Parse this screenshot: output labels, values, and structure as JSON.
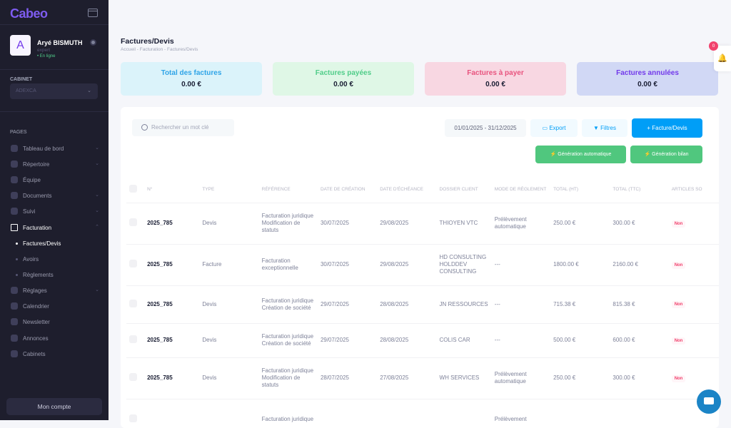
{
  "sidebar": {
    "logo": "Cabeo",
    "user": {
      "initial": "A",
      "name": "Aryé BISMUTH",
      "role": "expert",
      "status": "• En ligne"
    },
    "cabinet_label": "CABINET",
    "cabinet_value": "ADEXCA",
    "pages_label": "PAGES",
    "items": [
      {
        "label": "Tableau de bord"
      },
      {
        "label": "Répertoire"
      },
      {
        "label": "Équipe"
      },
      {
        "label": "Documents"
      },
      {
        "label": "Suivi"
      },
      {
        "label": "Facturation"
      },
      {
        "label": "Factures/Devis"
      },
      {
        "label": "Avoirs"
      },
      {
        "label": "Règlements"
      },
      {
        "label": "Réglages"
      },
      {
        "label": "Calendrier"
      },
      {
        "label": "Newsletter"
      },
      {
        "label": "Annonces"
      },
      {
        "label": "Cabinets"
      }
    ],
    "account_button": "Mon compte"
  },
  "header": {
    "title": "Factures/Devis",
    "breadcrumb": "Accueil  -  Facturation  -  Factures/Devis"
  },
  "cards": [
    {
      "title": "Total des factures",
      "value": "0.00 €",
      "color": "#2fa4e7",
      "bg": "#dbf3fa"
    },
    {
      "title": "Factures payées",
      "value": "0.00 €",
      "color": "#50cd89",
      "bg": "#dff7e6"
    },
    {
      "title": "Factures à payer",
      "value": "0.00 €",
      "color": "#e8537e",
      "bg": "#f8d7e2"
    },
    {
      "title": "Factures annulées",
      "value": "0.00 €",
      "color": "#7239ea",
      "bg": "#d1d8f5"
    }
  ],
  "toolbar": {
    "search_placeholder": "Rechercher un mot clé",
    "date_range": "01/01/2025 - 31/12/2025",
    "export": "Export",
    "filters": "Filtres",
    "new": "Facture/Devis",
    "gen_auto": "Génération automatique",
    "gen_bilan": "Génération bilan"
  },
  "table": {
    "headers": [
      "N°",
      "TYPE",
      "RÉFÉRENCE",
      "DATE DE CRÉATION",
      "DATE D'ÉCHÉANCE",
      "DOSSIER CLIENT",
      "MODE DE RÈGLEMENT",
      "TOTAL (HT)",
      "TOTAL (TTC)",
      "ARTICLES SO"
    ],
    "rows": [
      [
        "2025_785",
        "Devis",
        "Facturation juridique Modification de statuts",
        "30/07/2025",
        "29/08/2025",
        "THIOYEN VTC",
        "Prélèvement automatique",
        "250.00 €",
        "300.00 €",
        "Non"
      ],
      [
        "2025_785",
        "Facture",
        "Facturation exceptionnelle",
        "30/07/2025",
        "29/08/2025",
        "HD CONSULTING HOLDDEV CONSULTING",
        "---",
        "1800.00 €",
        "2160.00 €",
        "Non"
      ],
      [
        "2025_785",
        "Devis",
        "Facturation juridique Création de société",
        "29/07/2025",
        "28/08/2025",
        "JN RESSOURCES",
        "---",
        "715.38 €",
        "815.38 €",
        "Non"
      ],
      [
        "2025_785",
        "Devis",
        "Facturation juridique Création de société",
        "29/07/2025",
        "28/08/2025",
        "COLIS CAR",
        "---",
        "500.00 €",
        "600.00 €",
        "Non"
      ],
      [
        "2025_785",
        "Devis",
        "Facturation juridique Modification de statuts",
        "28/07/2025",
        "27/08/2025",
        "WH SERVICES",
        "Prélèvement automatique",
        "250.00 €",
        "300.00 €",
        "Non"
      ],
      [
        "",
        "",
        "Facturation juridique",
        "",
        "",
        "",
        "Prélèvement",
        "",
        "",
        ""
      ]
    ]
  },
  "notifications": {
    "count": "0"
  }
}
